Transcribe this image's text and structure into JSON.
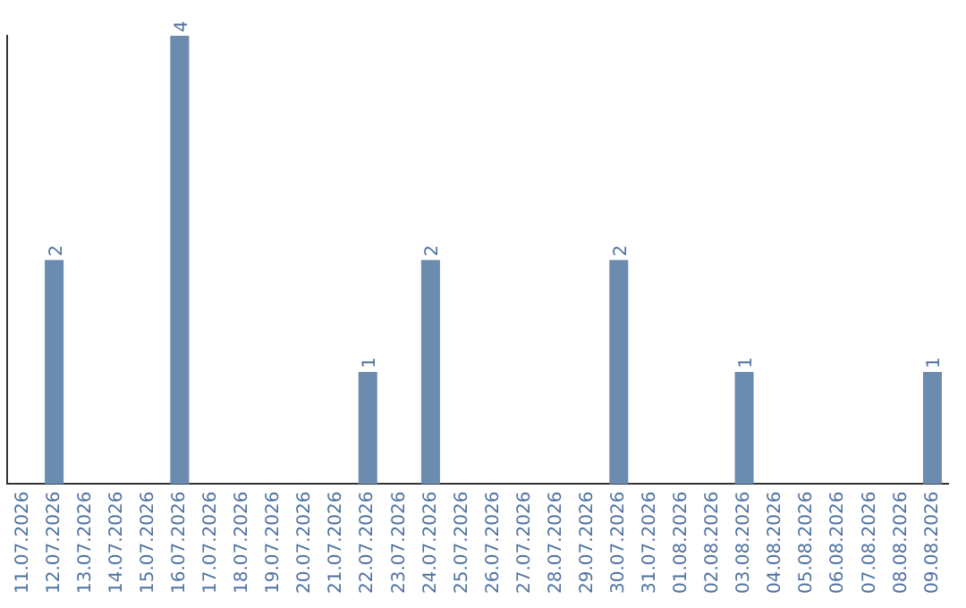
{
  "chart_data": {
    "type": "bar",
    "categories": [
      "11.07.2026",
      "12.07.2026",
      "13.07.2026",
      "14.07.2026",
      "15.07.2026",
      "16.07.2026",
      "17.07.2026",
      "18.07.2026",
      "19.07.2026",
      "20.07.2026",
      "21.07.2026",
      "22.07.2026",
      "23.07.2026",
      "24.07.2026",
      "25.07.2026",
      "26.07.2026",
      "27.07.2026",
      "28.07.2026",
      "29.07.2026",
      "30.07.2026",
      "31.07.2026",
      "01.08.2026",
      "02.08.2026",
      "03.08.2026",
      "04.08.2026",
      "05.08.2026",
      "06.08.2026",
      "07.08.2026",
      "08.08.2026",
      "09.08.2026"
    ],
    "values": [
      0,
      2,
      0,
      0,
      0,
      4,
      0,
      0,
      0,
      0,
      0,
      1,
      0,
      2,
      0,
      0,
      0,
      0,
      0,
      2,
      0,
      0,
      0,
      1,
      0,
      0,
      0,
      0,
      0,
      1
    ],
    "value_labels": [
      null,
      "2",
      null,
      null,
      null,
      "4",
      null,
      null,
      null,
      null,
      null,
      "1",
      null,
      "2",
      null,
      null,
      null,
      null,
      null,
      "2",
      null,
      null,
      null,
      "1",
      null,
      null,
      null,
      null,
      null,
      "1"
    ],
    "color": "#6b8cae",
    "grid": false,
    "legend": false,
    "tick_labels": "x"
  }
}
